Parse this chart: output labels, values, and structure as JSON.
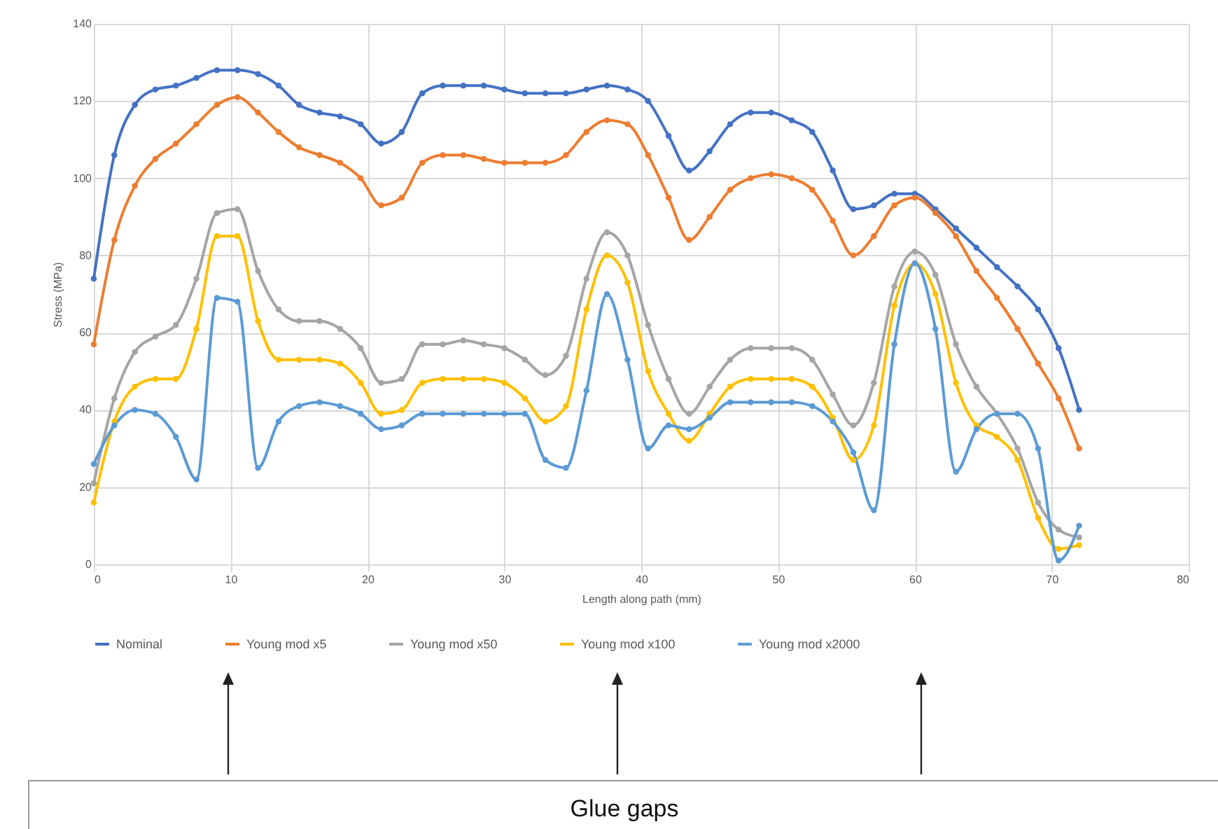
{
  "chart_data": {
    "type": "line",
    "xlabel": "Length along path (mm)",
    "ylabel": "Stress (MPa)",
    "x": [
      0,
      1.5,
      3,
      4.5,
      6,
      7.5,
      9,
      10.5,
      12,
      13.5,
      15,
      16.5,
      18,
      19.5,
      21,
      22.5,
      24,
      25.5,
      27,
      28.5,
      30,
      31.5,
      33,
      34.5,
      36,
      37.5,
      39,
      40.5,
      42,
      43.5,
      45,
      46.5,
      48,
      49.5,
      51,
      52.5,
      54,
      55.5,
      57,
      58.5,
      60,
      61.5,
      63,
      64.5,
      66,
      67.5,
      69,
      70.5,
      72
    ],
    "series": [
      {
        "name": "Nominal",
        "color": "#4472c4",
        "values": [
          74,
          106,
          119,
          123,
          124,
          126,
          128,
          128,
          127,
          124,
          119,
          117,
          116,
          114,
          109,
          112,
          122,
          124,
          124,
          124,
          123,
          122,
          122,
          122,
          123,
          124,
          123,
          120,
          111,
          102,
          107,
          114,
          117,
          117,
          115,
          112,
          102,
          92,
          93,
          96,
          96,
          92,
          87,
          82,
          77,
          72,
          66,
          56,
          40
        ]
      },
      {
        "name": "Young mod x5",
        "color": "#ed7d31",
        "values": [
          57,
          84,
          98,
          105,
          109,
          114,
          119,
          121,
          117,
          112,
          108,
          106,
          104,
          100,
          93,
          95,
          104,
          106,
          106,
          105,
          104,
          104,
          104,
          106,
          112,
          115,
          114,
          106,
          95,
          84,
          90,
          97,
          100,
          101,
          100,
          97,
          89,
          80,
          85,
          93,
          95,
          91,
          85,
          76,
          69,
          61,
          52,
          43,
          30
        ]
      },
      {
        "name": "Young mod x50",
        "color": "#a5a5a5",
        "values": [
          21,
          43,
          55,
          59,
          62,
          74,
          91,
          92,
          76,
          66,
          63,
          63,
          61,
          56,
          47,
          48,
          57,
          57,
          58,
          57,
          56,
          53,
          49,
          54,
          74,
          86,
          80,
          62,
          48,
          39,
          46,
          53,
          56,
          56,
          56,
          53,
          44,
          36,
          47,
          72,
          81,
          75,
          57,
          46,
          39,
          30,
          16,
          9,
          7
        ]
      },
      {
        "name": "Young mod x100",
        "color": "#ffc000",
        "values": [
          16,
          37,
          46,
          48,
          48,
          61,
          85,
          85,
          63,
          53,
          53,
          53,
          52,
          47,
          39,
          40,
          47,
          48,
          48,
          48,
          47,
          43,
          37,
          41,
          66,
          80,
          73,
          50,
          39,
          32,
          39,
          46,
          48,
          48,
          48,
          46,
          38,
          27,
          36,
          67,
          78,
          70,
          47,
          36,
          33,
          27,
          12,
          4,
          5
        ]
      },
      {
        "name": "Young mod x2000",
        "color": "#5b9bd5",
        "values": [
          26,
          36,
          40,
          39,
          33,
          22,
          69,
          68,
          25,
          37,
          41,
          42,
          41,
          39,
          35,
          36,
          39,
          39,
          39,
          39,
          39,
          39,
          27,
          25,
          45,
          70,
          53,
          30,
          36,
          35,
          38,
          42,
          42,
          42,
          42,
          41,
          37,
          29,
          14,
          57,
          78,
          61,
          24,
          35,
          39,
          39,
          30,
          1,
          10
        ]
      }
    ],
    "xlim": [
      0,
      80
    ],
    "xticks": [
      0,
      10,
      20,
      30,
      40,
      50,
      60,
      70,
      80
    ],
    "ylim": [
      0,
      140
    ],
    "yticks": [
      0,
      20,
      40,
      60,
      80,
      100,
      120,
      140
    ],
    "grid": true,
    "legend": "bottom",
    "marker": "circle",
    "line_style": "solid",
    "annotations": [
      "Glue gaps"
    ]
  }
}
